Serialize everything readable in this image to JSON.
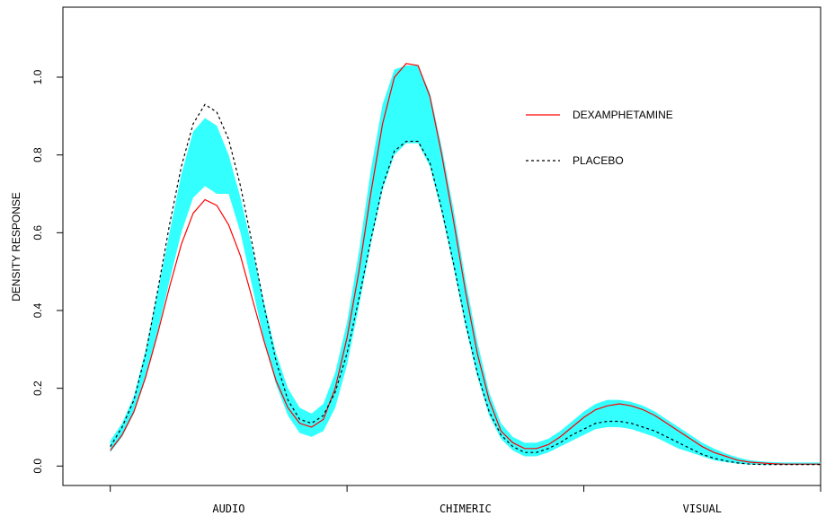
{
  "chart_data": {
    "type": "line",
    "title": "",
    "xlabel": "",
    "ylabel": "DENSITY RESPONSE",
    "ylim": [
      -0.05,
      1.18
    ],
    "yticks": [
      0.0,
      0.2,
      0.4,
      0.6,
      0.8,
      1.0
    ],
    "ytick_labels": [
      "0.0",
      "0.2",
      "0.4",
      "0.6",
      "0.8",
      "1.0"
    ],
    "xlim": [
      -0.2,
      3.0
    ],
    "xticks": [
      0,
      1,
      2,
      3
    ],
    "categories": [
      {
        "label": "AUDIO",
        "x": 0.5
      },
      {
        "label": "CHIMERIC",
        "x": 1.5
      },
      {
        "label": "VISUAL",
        "x": 2.5
      }
    ],
    "grid": false,
    "legend_position": "top-right",
    "x": [
      0.0,
      0.05,
      0.1,
      0.15,
      0.2,
      0.25,
      0.3,
      0.35,
      0.4,
      0.45,
      0.5,
      0.55,
      0.6,
      0.65,
      0.7,
      0.75,
      0.8,
      0.85,
      0.9,
      0.95,
      1.0,
      1.05,
      1.1,
      1.15,
      1.2,
      1.25,
      1.3,
      1.35,
      1.4,
      1.45,
      1.5,
      1.55,
      1.6,
      1.65,
      1.7,
      1.75,
      1.8,
      1.85,
      1.9,
      1.95,
      2.0,
      2.05,
      2.1,
      2.15,
      2.2,
      2.25,
      2.3,
      2.35,
      2.4,
      2.45,
      2.5,
      2.55,
      2.6,
      2.65,
      2.7,
      2.75,
      2.8,
      2.85,
      2.9,
      2.95,
      3.0
    ],
    "series": [
      {
        "name": "DEXAMPHETAMINE",
        "color": "#ff0000",
        "style": "solid",
        "values": [
          0.04,
          0.08,
          0.14,
          0.23,
          0.34,
          0.46,
          0.57,
          0.65,
          0.685,
          0.67,
          0.62,
          0.54,
          0.43,
          0.32,
          0.22,
          0.15,
          0.11,
          0.1,
          0.12,
          0.2,
          0.33,
          0.5,
          0.7,
          0.88,
          1.0,
          1.035,
          1.03,
          0.95,
          0.8,
          0.63,
          0.45,
          0.29,
          0.17,
          0.09,
          0.06,
          0.045,
          0.045,
          0.055,
          0.075,
          0.1,
          0.125,
          0.145,
          0.155,
          0.16,
          0.155,
          0.145,
          0.13,
          0.11,
          0.09,
          0.07,
          0.05,
          0.035,
          0.025,
          0.015,
          0.01,
          0.008,
          0.006,
          0.005,
          0.005,
          0.005,
          0.005
        ]
      },
      {
        "name": "PLACEBO",
        "color": "#000000",
        "style": "dashed",
        "values": [
          0.05,
          0.1,
          0.17,
          0.29,
          0.45,
          0.62,
          0.77,
          0.88,
          0.93,
          0.91,
          0.84,
          0.72,
          0.57,
          0.41,
          0.27,
          0.17,
          0.12,
          0.11,
          0.13,
          0.19,
          0.29,
          0.43,
          0.58,
          0.72,
          0.81,
          0.835,
          0.835,
          0.78,
          0.66,
          0.52,
          0.37,
          0.24,
          0.14,
          0.08,
          0.05,
          0.035,
          0.035,
          0.045,
          0.06,
          0.08,
          0.095,
          0.11,
          0.115,
          0.115,
          0.11,
          0.1,
          0.09,
          0.075,
          0.06,
          0.045,
          0.03,
          0.02,
          0.013,
          0.008,
          0.005,
          0.004,
          0.004,
          0.004,
          0.004,
          0.004,
          0.004
        ]
      }
    ],
    "band": {
      "color": "#33ffff",
      "lower": [
        0.035,
        0.075,
        0.135,
        0.225,
        0.345,
        0.475,
        0.6,
        0.69,
        0.72,
        0.7,
        0.7,
        0.6,
        0.46,
        0.32,
        0.21,
        0.13,
        0.085,
        0.075,
        0.09,
        0.15,
        0.26,
        0.41,
        0.57,
        0.71,
        0.8,
        0.83,
        0.83,
        0.77,
        0.65,
        0.51,
        0.36,
        0.23,
        0.13,
        0.07,
        0.04,
        0.025,
        0.025,
        0.035,
        0.05,
        0.065,
        0.08,
        0.095,
        0.1,
        0.1,
        0.095,
        0.085,
        0.075,
        0.06,
        0.045,
        0.035,
        0.025,
        0.015,
        0.01,
        0.006,
        0.004,
        0.003,
        0.003,
        0.003,
        0.003,
        0.003,
        0.003
      ],
      "upper": [
        0.065,
        0.11,
        0.18,
        0.3,
        0.45,
        0.6,
        0.75,
        0.86,
        0.895,
        0.875,
        0.8,
        0.69,
        0.56,
        0.42,
        0.29,
        0.2,
        0.15,
        0.135,
        0.16,
        0.24,
        0.37,
        0.55,
        0.76,
        0.93,
        1.02,
        1.03,
        1.03,
        0.96,
        0.82,
        0.66,
        0.48,
        0.32,
        0.19,
        0.11,
        0.075,
        0.06,
        0.06,
        0.07,
        0.09,
        0.115,
        0.14,
        0.16,
        0.17,
        0.17,
        0.165,
        0.155,
        0.14,
        0.12,
        0.1,
        0.08,
        0.06,
        0.045,
        0.032,
        0.022,
        0.015,
        0.012,
        0.01,
        0.009,
        0.009,
        0.009,
        0.009
      ]
    }
  }
}
